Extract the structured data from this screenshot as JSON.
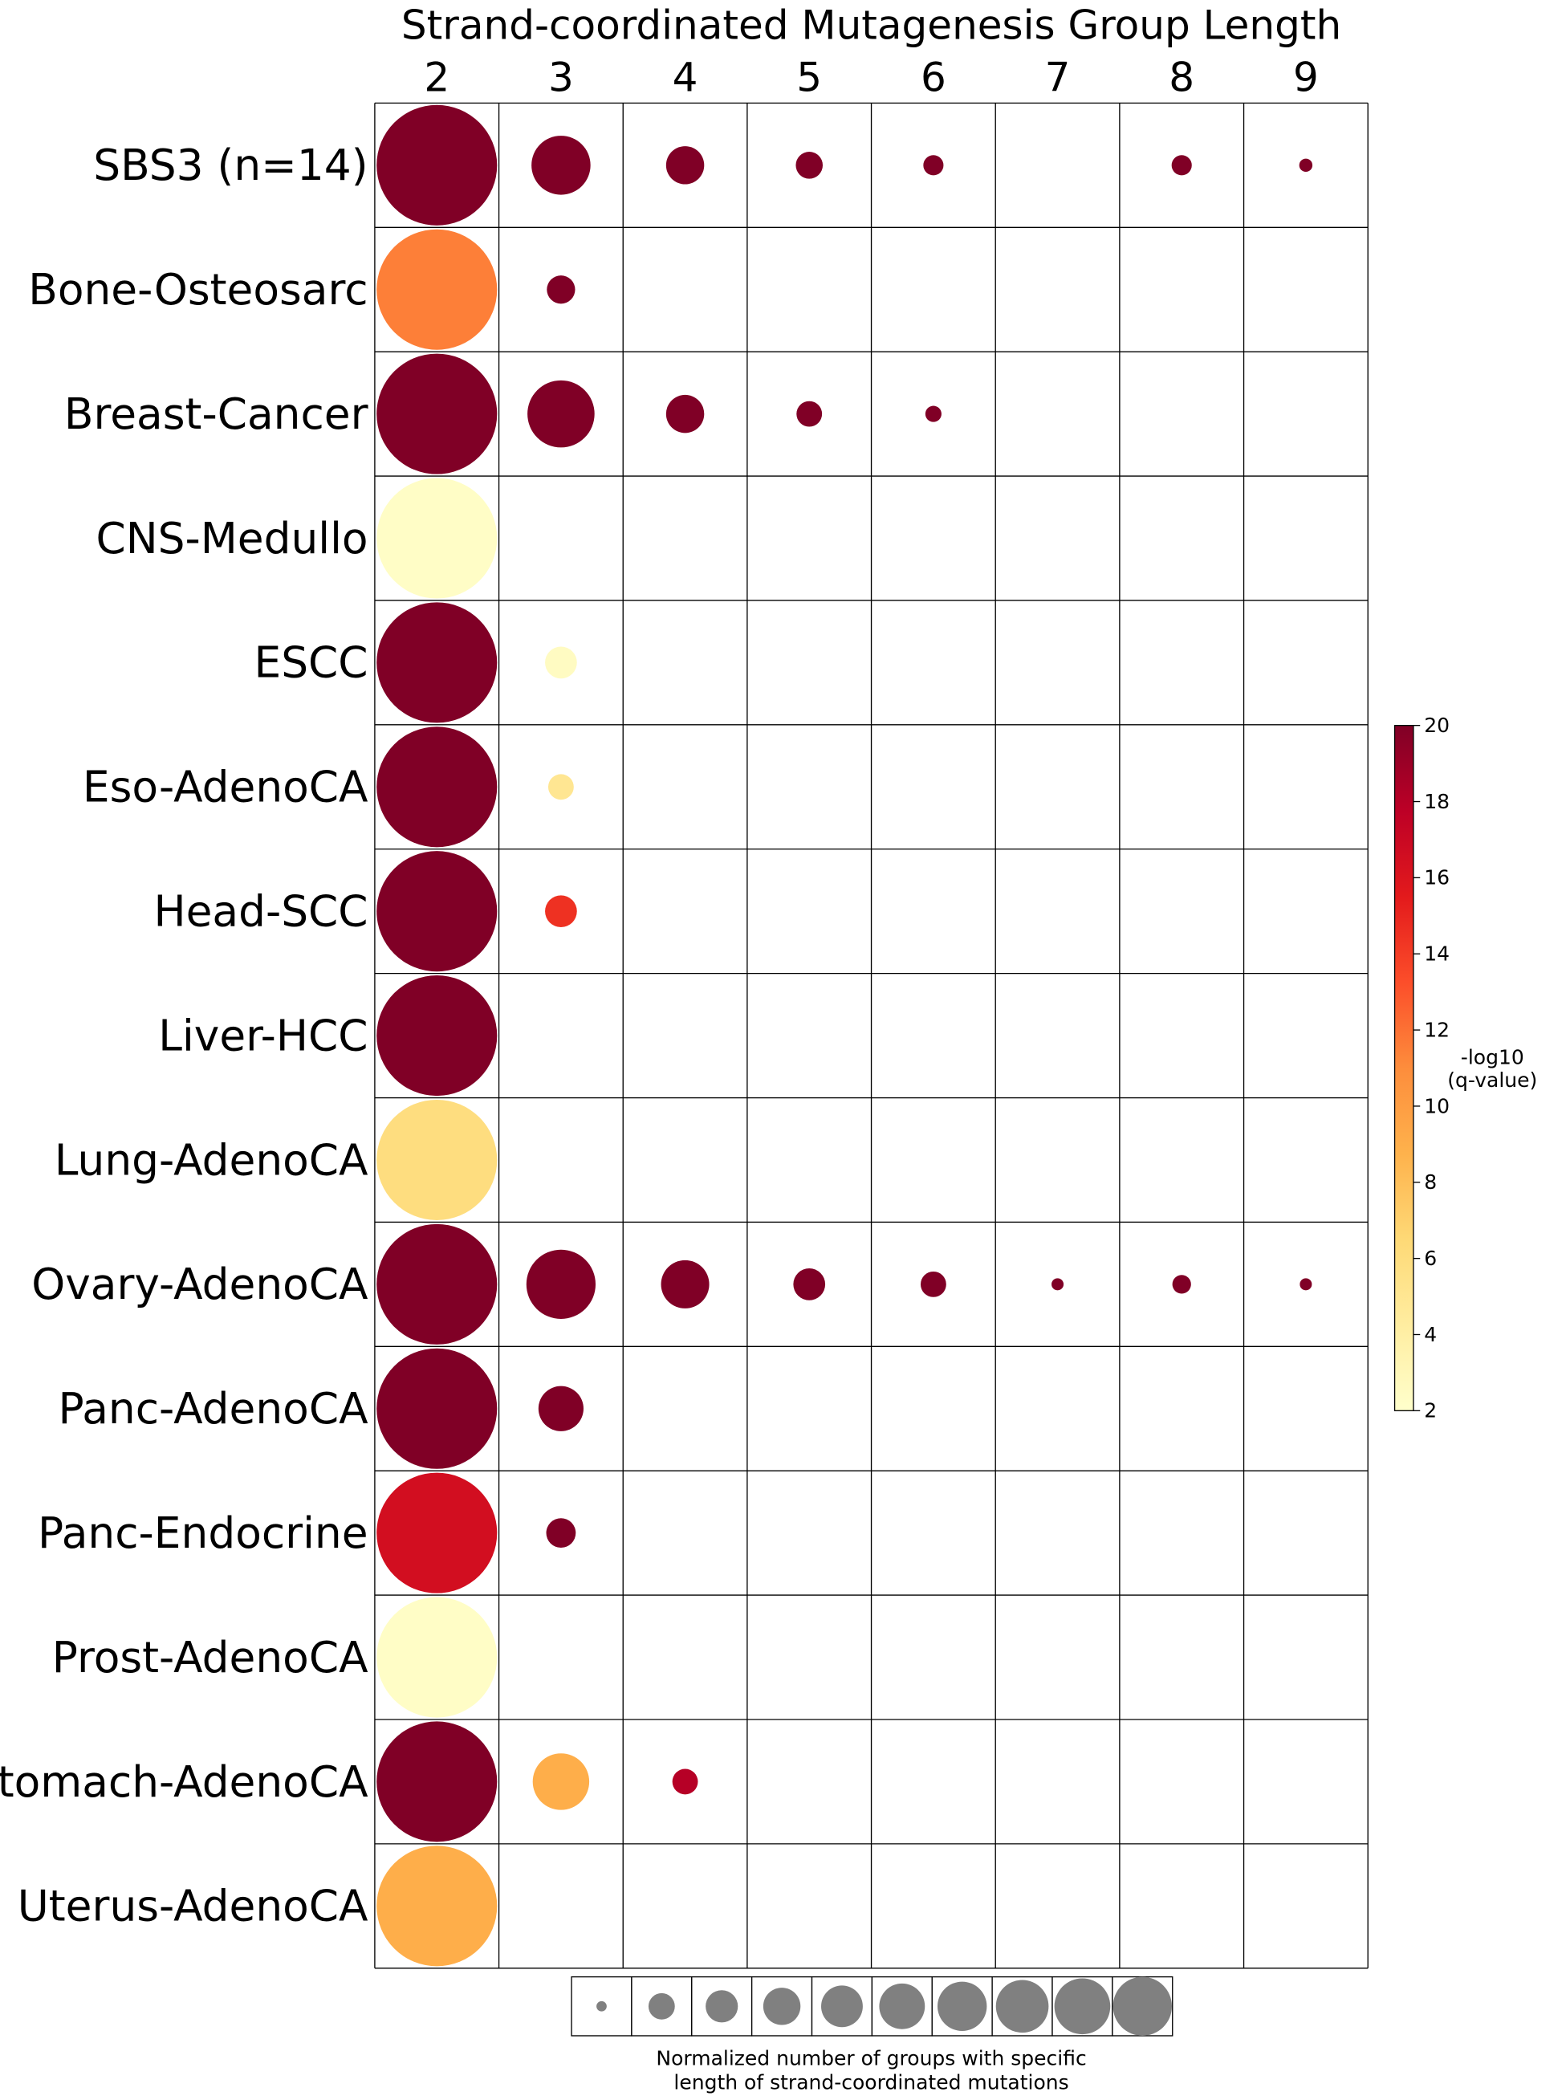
{
  "chart_data": {
    "type": "bubble-matrix",
    "title": "Strand-coordinated Mutagenesis Group Length",
    "columns": [
      "2",
      "3",
      "4",
      "5",
      "6",
      "7",
      "8",
      "9"
    ],
    "rows": [
      "SBS3 (n=14)",
      "Bone-Osteosarc",
      "Breast-Cancer",
      "CNS-Medullo",
      "ESCC",
      "Eso-AdenoCA",
      "Head-SCC",
      "Liver-HCC",
      "Lung-AdenoCA",
      "Ovary-AdenoCA",
      "Panc-AdenoCA",
      "Panc-Endocrine",
      "Prost-AdenoCA",
      "Stomach-AdenoCA",
      "Uterus-AdenoCA"
    ],
    "points": [
      {
        "row": "SBS3 (n=14)",
        "col": "2",
        "size": 1.0,
        "q": 20
      },
      {
        "row": "SBS3 (n=14)",
        "col": "3",
        "size": 0.24,
        "q": 20
      },
      {
        "row": "SBS3 (n=14)",
        "col": "4",
        "size": 0.1,
        "q": 20
      },
      {
        "row": "SBS3 (n=14)",
        "col": "5",
        "size": 0.05,
        "q": 20
      },
      {
        "row": "SBS3 (n=14)",
        "col": "6",
        "size": 0.028,
        "q": 20
      },
      {
        "row": "SBS3 (n=14)",
        "col": "8",
        "size": 0.028,
        "q": 20
      },
      {
        "row": "SBS3 (n=14)",
        "col": "9",
        "size": 0.012,
        "q": 20
      },
      {
        "row": "Bone-Osteosarc",
        "col": "2",
        "size": 1.0,
        "q": 11.5
      },
      {
        "row": "Bone-Osteosarc",
        "col": "3",
        "size": 0.055,
        "q": 20
      },
      {
        "row": "Breast-Cancer",
        "col": "2",
        "size": 1.0,
        "q": 20
      },
      {
        "row": "Breast-Cancer",
        "col": "3",
        "size": 0.31,
        "q": 20
      },
      {
        "row": "Breast-Cancer",
        "col": "4",
        "size": 0.1,
        "q": 20
      },
      {
        "row": "Breast-Cancer",
        "col": "5",
        "size": 0.045,
        "q": 20
      },
      {
        "row": "Breast-Cancer",
        "col": "6",
        "size": 0.018,
        "q": 20
      },
      {
        "row": "CNS-Medullo",
        "col": "2",
        "size": 1.0,
        "q": 2.3
      },
      {
        "row": "ESCC",
        "col": "2",
        "size": 1.0,
        "q": 20
      },
      {
        "row": "ESCC",
        "col": "3",
        "size": 0.07,
        "q": 2.5
      },
      {
        "row": "Eso-AdenoCA",
        "col": "2",
        "size": 1.0,
        "q": 20
      },
      {
        "row": "Eso-AdenoCA",
        "col": "3",
        "size": 0.045,
        "q": 5
      },
      {
        "row": "Head-SCC",
        "col": "2",
        "size": 1.0,
        "q": 20
      },
      {
        "row": "Head-SCC",
        "col": "3",
        "size": 0.07,
        "q": 14.5
      },
      {
        "row": "Liver-HCC",
        "col": "2",
        "size": 1.0,
        "q": 20
      },
      {
        "row": "Lung-AdenoCA",
        "col": "2",
        "size": 1.0,
        "q": 6
      },
      {
        "row": "Ovary-AdenoCA",
        "col": "2",
        "size": 1.0,
        "q": 20
      },
      {
        "row": "Ovary-AdenoCA",
        "col": "3",
        "size": 0.33,
        "q": 20
      },
      {
        "row": "Ovary-AdenoCA",
        "col": "4",
        "size": 0.16,
        "q": 20
      },
      {
        "row": "Ovary-AdenoCA",
        "col": "5",
        "size": 0.07,
        "q": 20
      },
      {
        "row": "Ovary-AdenoCA",
        "col": "6",
        "size": 0.045,
        "q": 20
      },
      {
        "row": "Ovary-AdenoCA",
        "col": "7",
        "size": 0.01,
        "q": 20
      },
      {
        "row": "Ovary-AdenoCA",
        "col": "8",
        "size": 0.024,
        "q": 20
      },
      {
        "row": "Ovary-AdenoCA",
        "col": "9",
        "size": 0.01,
        "q": 20
      },
      {
        "row": "Panc-AdenoCA",
        "col": "2",
        "size": 1.0,
        "q": 20
      },
      {
        "row": "Panc-AdenoCA",
        "col": "3",
        "size": 0.14,
        "q": 20
      },
      {
        "row": "Panc-Endocrine",
        "col": "2",
        "size": 1.0,
        "q": 16.5
      },
      {
        "row": "Panc-Endocrine",
        "col": "3",
        "size": 0.06,
        "q": 20
      },
      {
        "row": "Prost-AdenoCA",
        "col": "2",
        "size": 1.0,
        "q": 2.3
      },
      {
        "row": "Stomach-AdenoCA",
        "col": "2",
        "size": 1.0,
        "q": 20
      },
      {
        "row": "Stomach-AdenoCA",
        "col": "3",
        "size": 0.22,
        "q": 9
      },
      {
        "row": "Stomach-AdenoCA",
        "col": "4",
        "size": 0.045,
        "q": 18
      },
      {
        "row": "Uterus-AdenoCA",
        "col": "2",
        "size": 1.0,
        "q": 9
      }
    ],
    "colorbar": {
      "label_line1": "-log10",
      "label_line2": "(q-value)",
      "range": [
        2,
        20
      ],
      "ticks": [
        "2",
        "4",
        "6",
        "8",
        "10",
        "12",
        "14",
        "16",
        "18",
        "20"
      ],
      "colormap": "YlOrRd",
      "colormap_stops": [
        "#ffffcc",
        "#ffeda0",
        "#fed976",
        "#feb24c",
        "#fd8d3c",
        "#fc4e2a",
        "#e31a1c",
        "#bd0026",
        "#800026"
      ]
    },
    "size_legend": {
      "label_line1": "Normalized number of groups with specific",
      "label_line2": "length of strand-coordinated mutations",
      "steps": [
        0.1,
        0.2,
        0.3,
        0.4,
        0.5,
        0.6,
        0.7,
        0.8,
        0.9,
        1.0
      ],
      "color": "#808080"
    },
    "grid": true
  }
}
